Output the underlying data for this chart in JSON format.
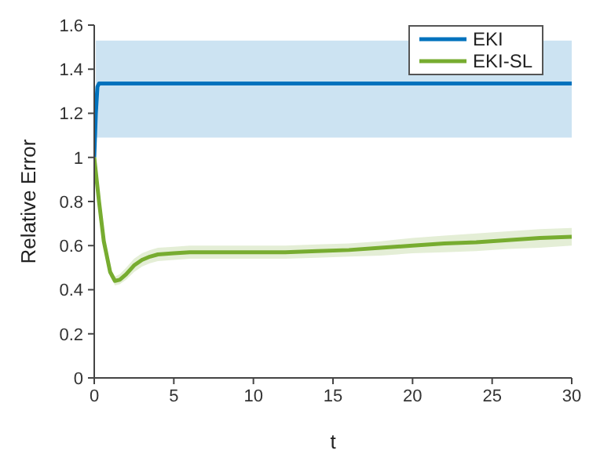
{
  "chart_data": {
    "type": "line",
    "xlabel": "t",
    "ylabel": "Relative Error",
    "xlim": [
      0,
      30
    ],
    "xticks": [
      0,
      5,
      10,
      15,
      20,
      25,
      30
    ],
    "ylim": [
      0,
      1.6
    ],
    "yticks": [
      0,
      0.2,
      0.4,
      0.6,
      0.8,
      1,
      1.2,
      1.4,
      1.6
    ],
    "legend": "top right",
    "grid": false,
    "line_style": "solid",
    "marker": "none",
    "series": [
      {
        "name": "EKI",
        "color": "#0072bd",
        "x": [
          0,
          0.1,
          0.2,
          0.3,
          5,
          10,
          15,
          30
        ],
        "values": [
          1,
          1.2,
          1.32,
          1.335,
          1.335,
          1.335,
          1.335,
          1.335
        ],
        "lower": [
          null,
          1.09,
          1.09,
          1.09,
          1.09,
          1.09,
          1.09,
          1.09
        ],
        "upper": [
          null,
          1.53,
          1.53,
          1.53,
          1.53,
          1.53,
          1.53,
          1.53
        ]
      },
      {
        "name": "EKI-SL",
        "color": "#77ac30",
        "x": [
          0,
          0.3,
          0.6,
          1,
          1.3,
          1.6,
          2,
          2.5,
          3,
          3.5,
          4,
          5,
          6,
          8,
          10,
          12,
          14,
          16,
          18,
          20,
          22,
          24,
          26,
          28,
          30
        ],
        "values": [
          1,
          0.8,
          0.62,
          0.48,
          0.44,
          0.445,
          0.47,
          0.51,
          0.535,
          0.55,
          0.56,
          0.565,
          0.57,
          0.57,
          0.57,
          0.57,
          0.575,
          0.58,
          0.59,
          0.6,
          0.61,
          0.615,
          0.625,
          0.635,
          0.64
        ],
        "lower": [
          1,
          0.78,
          0.6,
          0.46,
          0.42,
          0.425,
          0.445,
          0.48,
          0.505,
          0.52,
          0.53,
          0.535,
          0.54,
          0.54,
          0.54,
          0.54,
          0.545,
          0.55,
          0.555,
          0.565,
          0.57,
          0.575,
          0.585,
          0.59,
          0.6
        ],
        "upper": [
          1,
          0.82,
          0.64,
          0.5,
          0.46,
          0.47,
          0.5,
          0.54,
          0.565,
          0.58,
          0.59,
          0.595,
          0.6,
          0.6,
          0.6,
          0.6,
          0.605,
          0.61,
          0.62,
          0.635,
          0.645,
          0.655,
          0.665,
          0.675,
          0.68
        ]
      }
    ]
  }
}
